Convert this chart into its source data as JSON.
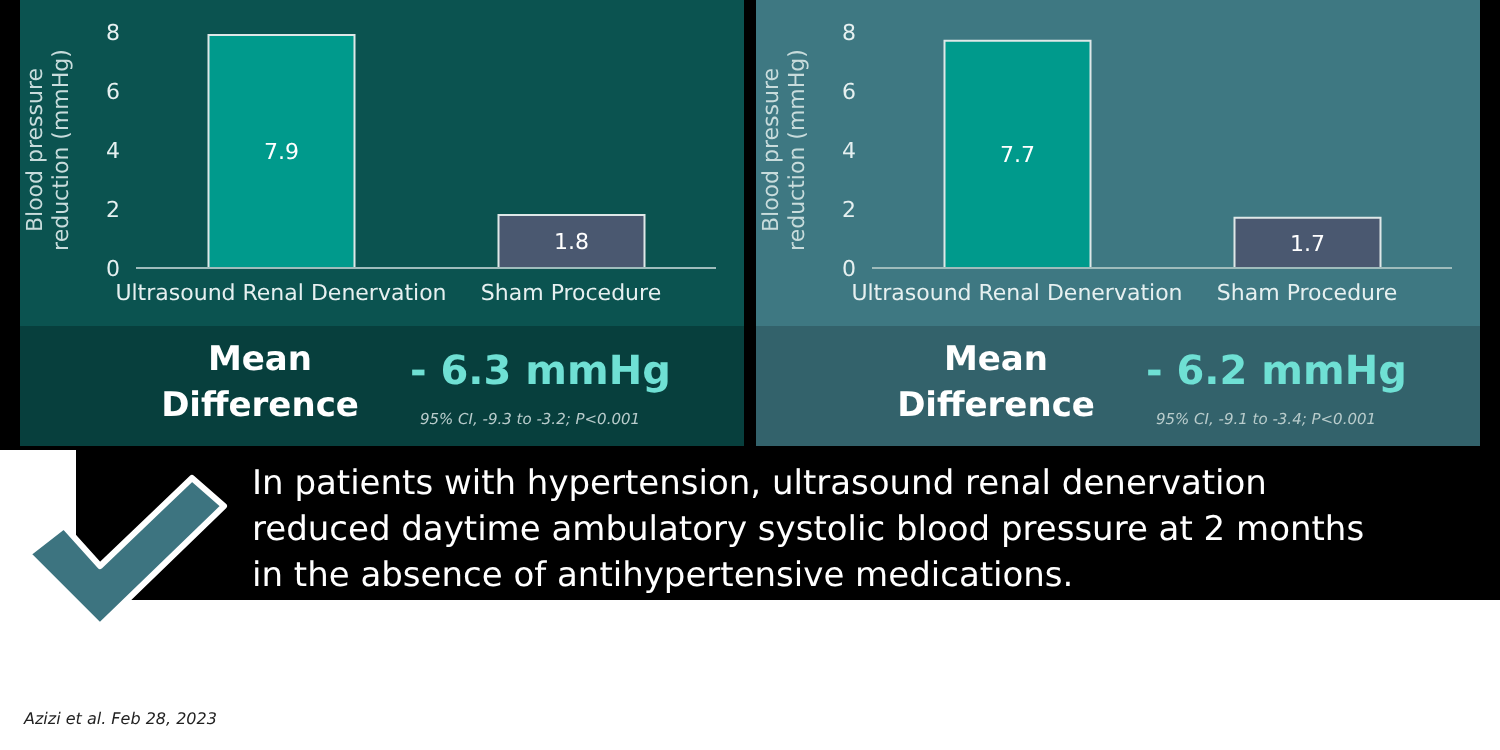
{
  "chart_data": [
    {
      "type": "bar",
      "categories": [
        "Ultrasound Renal Denervation",
        "Sham Procedure"
      ],
      "values": [
        7.9,
        1.8
      ],
      "colors": [
        "#009a8c",
        "#4a5870"
      ],
      "ylabel": "Blood pressure reduction (mmHg)",
      "ylim": [
        0,
        8
      ],
      "yticks": [
        0,
        2,
        4,
        6,
        8
      ],
      "data_labels": true,
      "grid": false,
      "legend": false,
      "annotations": [
        "Mean Difference",
        "- 6.3 mmHg",
        "95% CI, -9.3 to -3.2; P<0.001"
      ]
    },
    {
      "type": "bar",
      "categories": [
        "Ultrasound Renal Denervation",
        "Sham Procedure"
      ],
      "values": [
        7.7,
        1.7
      ],
      "colors": [
        "#009a8c",
        "#4a5870"
      ],
      "ylabel": "Blood pressure reduction (mmHg)",
      "ylim": [
        0,
        8
      ],
      "yticks": [
        0,
        2,
        4,
        6,
        8
      ],
      "data_labels": true,
      "grid": false,
      "legend": false,
      "annotations": [
        "Mean Difference",
        "- 6.2 mmHg",
        "95% CI, -9.1 to -3.4; P<0.001"
      ]
    },
    {
      "type": "other",
      "annotations": [
        "In patients with hypertension, ultrasound renal denervation reduced daytime ambulatory systolic blood pressure at 2 months in the absence of antihypertensive medications.",
        "Azizi et al. Feb 28, 2023"
      ]
    }
  ]
}
